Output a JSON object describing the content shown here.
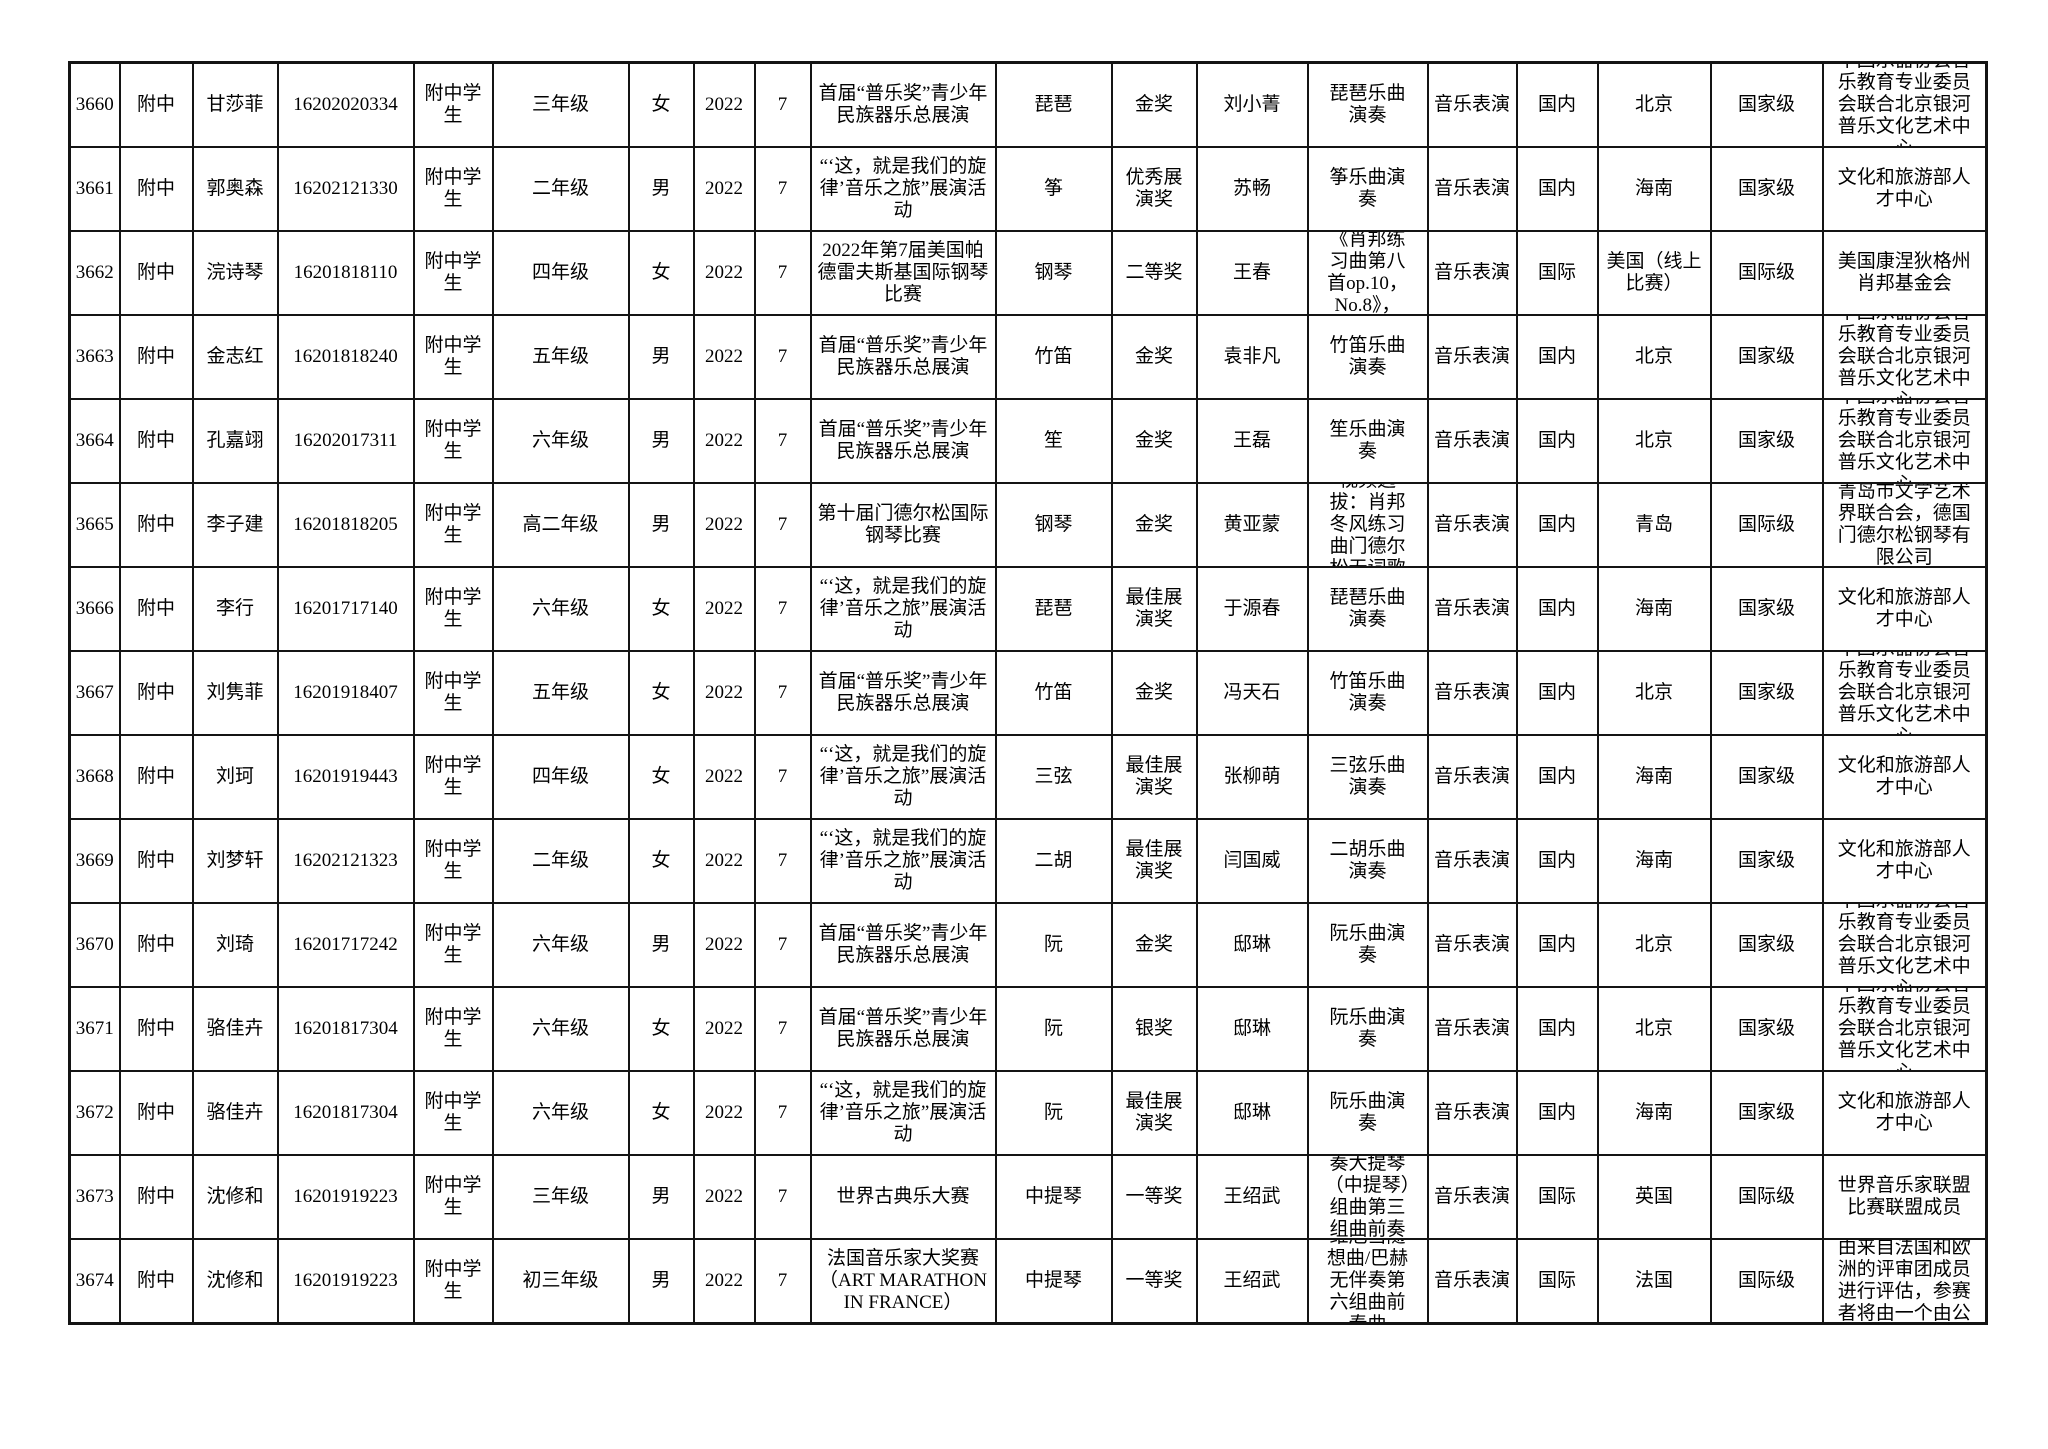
{
  "document": {
    "description": "student competition awards table page, rows 3660-3674, no header row visible",
    "border_color": "#141414",
    "background_color": "#ffffff"
  },
  "table": {
    "column_keys": [
      "index",
      "school",
      "name",
      "student-id",
      "identity",
      "grade",
      "gender",
      "year",
      "month",
      "competition",
      "instrument",
      "award",
      "teacher",
      "piece",
      "category",
      "scope",
      "location",
      "level",
      "organizer"
    ],
    "rows": [
      [
        "3660",
        "附中",
        "甘莎菲",
        "16202020334",
        "附中学生",
        "三年级",
        "女",
        "2022",
        "7",
        "首届“普乐奖”青少年民族器乐总展演",
        "琵琶",
        "金奖",
        "刘小菁",
        "琵琶乐曲演奏",
        "音乐表演",
        "国内",
        "北京",
        "国家级",
        "中国乐器协会音乐教育专业委员会联合北京银河普乐文化艺术中心"
      ],
      [
        "3661",
        "附中",
        "郭奥森",
        "16202121330",
        "附中学生",
        "二年级",
        "男",
        "2022",
        "7",
        "“‘这，就是我们的旋律’音乐之旅”展演活动",
        "筝",
        "优秀展演奖",
        "苏畅",
        "筝乐曲演奏",
        "音乐表演",
        "国内",
        "海南",
        "国家级",
        "文化和旅游部人才中心"
      ],
      [
        "3662",
        "附中",
        "浣诗琴",
        "16201818110",
        "附中学生",
        "四年级",
        "女",
        "2022",
        "7",
        "2022年第7届美国帕德雷夫斯基国际钢琴比赛",
        "钢琴",
        "二等奖",
        "王春",
        "《肖邦练习曲第八首op.10，No.8》，",
        "音乐表演",
        "国际",
        "美国（线上比赛）",
        "国际级",
        "美国康涅狄格州肖邦基金会"
      ],
      [
        "3663",
        "附中",
        "金志红",
        "16201818240",
        "附中学生",
        "五年级",
        "男",
        "2022",
        "7",
        "首届“普乐奖”青少年民族器乐总展演",
        "竹笛",
        "金奖",
        "袁非凡",
        "竹笛乐曲演奏",
        "音乐表演",
        "国内",
        "北京",
        "国家级",
        "中国乐器协会音乐教育专业委员会联合北京银河普乐文化艺术中心"
      ],
      [
        "3664",
        "附中",
        "孔嘉翊",
        "16202017311",
        "附中学生",
        "六年级",
        "男",
        "2022",
        "7",
        "首届“普乐奖”青少年民族器乐总展演",
        "笙",
        "金奖",
        "王磊",
        "笙乐曲演奏",
        "音乐表演",
        "国内",
        "北京",
        "国家级",
        "中国乐器协会音乐教育专业委员会联合北京银河普乐文化艺术中心"
      ],
      [
        "3665",
        "附中",
        "李子建",
        "16201818205",
        "附中学生",
        "高二年级",
        "男",
        "2022",
        "7",
        "第十届门德尔松国际钢琴比赛",
        "钢琴",
        "金奖",
        "黄亚蒙",
        "视频选拔：肖邦冬风练习曲门德尔松无词歌",
        "音乐表演",
        "国内",
        "青岛",
        "国际级",
        "青岛市文学艺术界联合会，德国门德尔松钢琴有限公司"
      ],
      [
        "3666",
        "附中",
        "李行",
        "16201717140",
        "附中学生",
        "六年级",
        "女",
        "2022",
        "7",
        "“‘这，就是我们的旋律’音乐之旅”展演活动",
        "琵琶",
        "最佳展演奖",
        "于源春",
        "琵琶乐曲演奏",
        "音乐表演",
        "国内",
        "海南",
        "国家级",
        "文化和旅游部人才中心"
      ],
      [
        "3667",
        "附中",
        "刘隽菲",
        "16201918407",
        "附中学生",
        "五年级",
        "女",
        "2022",
        "7",
        "首届“普乐奖”青少年民族器乐总展演",
        "竹笛",
        "金奖",
        "冯天石",
        "竹笛乐曲演奏",
        "音乐表演",
        "国内",
        "北京",
        "国家级",
        "中国乐器协会音乐教育专业委员会联合北京银河普乐文化艺术中心"
      ],
      [
        "3668",
        "附中",
        "刘珂",
        "16201919443",
        "附中学生",
        "四年级",
        "女",
        "2022",
        "7",
        "“‘这，就是我们的旋律’音乐之旅”展演活动",
        "三弦",
        "最佳展演奖",
        "张柳萌",
        "三弦乐曲演奏",
        "音乐表演",
        "国内",
        "海南",
        "国家级",
        "文化和旅游部人才中心"
      ],
      [
        "3669",
        "附中",
        "刘梦轩",
        "16202121323",
        "附中学生",
        "二年级",
        "女",
        "2022",
        "7",
        "“‘这，就是我们的旋律’音乐之旅”展演活动",
        "二胡",
        "最佳展演奖",
        "闫国威",
        "二胡乐曲演奏",
        "音乐表演",
        "国内",
        "海南",
        "国家级",
        "文化和旅游部人才中心"
      ],
      [
        "3670",
        "附中",
        "刘琦",
        "16201717242",
        "附中学生",
        "六年级",
        "男",
        "2022",
        "7",
        "首届“普乐奖”青少年民族器乐总展演",
        "阮",
        "金奖",
        "邸琳",
        "阮乐曲演奏",
        "音乐表演",
        "国内",
        "北京",
        "国家级",
        "中国乐器协会音乐教育专业委员会联合北京银河普乐文化艺术中心"
      ],
      [
        "3671",
        "附中",
        "骆佳卉",
        "16201817304",
        "附中学生",
        "六年级",
        "女",
        "2022",
        "7",
        "首届“普乐奖”青少年民族器乐总展演",
        "阮",
        "银奖",
        "邸琳",
        "阮乐曲演奏",
        "音乐表演",
        "国内",
        "北京",
        "国家级",
        "中国乐器协会音乐教育专业委员会联合北京银河普乐文化艺术中心"
      ],
      [
        "3672",
        "附中",
        "骆佳卉",
        "16201817304",
        "附中学生",
        "六年级",
        "女",
        "2022",
        "7",
        "“‘这，就是我们的旋律’音乐之旅”展演活动",
        "阮",
        "最佳展演奖",
        "邸琳",
        "阮乐曲演奏",
        "音乐表演",
        "国内",
        "海南",
        "国家级",
        "文化和旅游部人才中心"
      ],
      [
        "3673",
        "附中",
        "沈修和",
        "16201919223",
        "附中学生",
        "三年级",
        "男",
        "2022",
        "7",
        "世界古典乐大赛",
        "中提琴",
        "一等奖",
        "王绍武",
        "巴赫无伴奏大提琴（中提琴）组曲第三组曲前奏曲",
        "音乐表演",
        "国际",
        "英国",
        "国际级",
        "世界音乐家联盟比赛联盟成员"
      ],
      [
        "3674",
        "附中",
        "沈修和",
        "16201919223",
        "附中学生",
        "初三年级",
        "男",
        "2022",
        "7",
        "法国音乐家大奖赛（ART MARATHON IN FRANCE）",
        "中提琴",
        "一等奖",
        "王绍武",
        "维厄当随想曲/巴赫无伴奏第六组曲前奏曲",
        "音乐表演",
        "国际",
        "法国",
        "国际级",
        "由来自法国和欧洲的评审团成员进行评估，参赛者将由一个由公"
      ]
    ]
  }
}
